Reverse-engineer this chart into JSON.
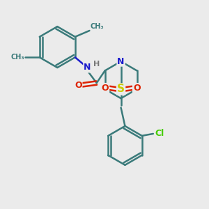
{
  "bg_color": "#ebebeb",
  "bond_color": "#3a7a7a",
  "bond_width": 1.8,
  "atom_colors": {
    "N": "#1a1acc",
    "O": "#dd2200",
    "S": "#cccc00",
    "Cl": "#44cc00",
    "H": "#777777",
    "C": "#3a7a7a"
  },
  "figsize": [
    3.0,
    3.0
  ],
  "dpi": 100
}
